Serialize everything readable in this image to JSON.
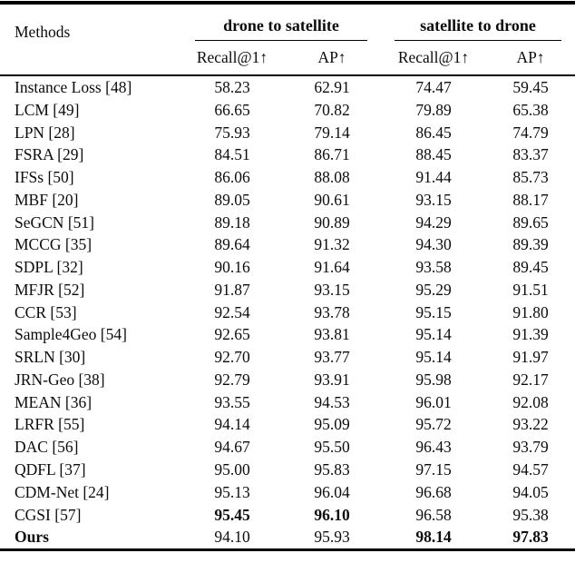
{
  "table": {
    "methods_header": "Methods",
    "groups": [
      {
        "label": "drone to satellite",
        "metrics": [
          "Recall@1↑",
          "AP↑"
        ]
      },
      {
        "label": "satellite to drone",
        "metrics": [
          "Recall@1↑",
          "AP↑"
        ]
      }
    ],
    "rows": [
      {
        "method": "Instance Loss [48]",
        "bold_method": false,
        "values": [
          "58.23",
          "62.91",
          "74.47",
          "59.45"
        ],
        "bold_values": []
      },
      {
        "method": "LCM [49]",
        "bold_method": false,
        "values": [
          "66.65",
          "70.82",
          "79.89",
          "65.38"
        ],
        "bold_values": []
      },
      {
        "method": "LPN [28]",
        "bold_method": false,
        "values": [
          "75.93",
          "79.14",
          "86.45",
          "74.79"
        ],
        "bold_values": []
      },
      {
        "method": "FSRA [29]",
        "bold_method": false,
        "values": [
          "84.51",
          "86.71",
          "88.45",
          "83.37"
        ],
        "bold_values": []
      },
      {
        "method": "IFSs [50]",
        "bold_method": false,
        "values": [
          "86.06",
          "88.08",
          "91.44",
          "85.73"
        ],
        "bold_values": []
      },
      {
        "method": "MBF [20]",
        "bold_method": false,
        "values": [
          "89.05",
          "90.61",
          "93.15",
          "88.17"
        ],
        "bold_values": []
      },
      {
        "method": "SeGCN [51]",
        "bold_method": false,
        "values": [
          "89.18",
          "90.89",
          "94.29",
          "89.65"
        ],
        "bold_values": []
      },
      {
        "method": "MCCG [35]",
        "bold_method": false,
        "values": [
          "89.64",
          "91.32",
          "94.30",
          "89.39"
        ],
        "bold_values": []
      },
      {
        "method": "SDPL [32]",
        "bold_method": false,
        "values": [
          "90.16",
          "91.64",
          "93.58",
          "89.45"
        ],
        "bold_values": []
      },
      {
        "method": "MFJR [52]",
        "bold_method": false,
        "values": [
          "91.87",
          "93.15",
          "95.29",
          "91.51"
        ],
        "bold_values": []
      },
      {
        "method": "CCR [53]",
        "bold_method": false,
        "values": [
          "92.54",
          "93.78",
          "95.15",
          "91.80"
        ],
        "bold_values": []
      },
      {
        "method": "Sample4Geo [54]",
        "bold_method": false,
        "values": [
          "92.65",
          "93.81",
          "95.14",
          "91.39"
        ],
        "bold_values": []
      },
      {
        "method": "SRLN [30]",
        "bold_method": false,
        "values": [
          "92.70",
          "93.77",
          "95.14",
          "91.97"
        ],
        "bold_values": []
      },
      {
        "method": "JRN-Geo [38]",
        "bold_method": false,
        "values": [
          "92.79",
          "93.91",
          "95.98",
          "92.17"
        ],
        "bold_values": []
      },
      {
        "method": "MEAN [36]",
        "bold_method": false,
        "values": [
          "93.55",
          "94.53",
          "96.01",
          "92.08"
        ],
        "bold_values": []
      },
      {
        "method": "LRFR [55]",
        "bold_method": false,
        "values": [
          "94.14",
          "95.09",
          "95.72",
          "93.22"
        ],
        "bold_values": []
      },
      {
        "method": "DAC [56]",
        "bold_method": false,
        "values": [
          "94.67",
          "95.50",
          "96.43",
          "93.79"
        ],
        "bold_values": []
      },
      {
        "method": "QDFL [37]",
        "bold_method": false,
        "values": [
          "95.00",
          "95.83",
          "97.15",
          "94.57"
        ],
        "bold_values": []
      },
      {
        "method": "CDM-Net [24]",
        "bold_method": false,
        "values": [
          "95.13",
          "96.04",
          "96.68",
          "94.05"
        ],
        "bold_values": []
      },
      {
        "method": "CGSI [57]",
        "bold_method": false,
        "values": [
          "95.45",
          "96.10",
          "96.58",
          "95.38"
        ],
        "bold_values": [
          0,
          1
        ]
      },
      {
        "method": "Ours",
        "bold_method": true,
        "values": [
          "94.10",
          "95.93",
          "98.14",
          "97.83"
        ],
        "bold_values": [
          2,
          3
        ]
      }
    ]
  }
}
